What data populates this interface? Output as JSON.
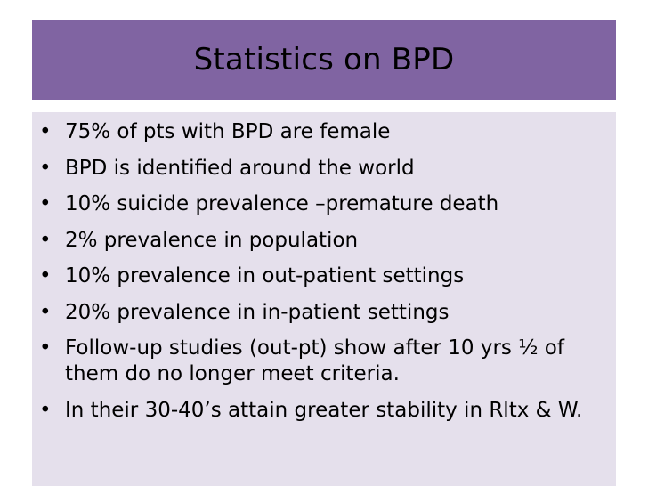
{
  "slide": {
    "title": "Statistics on BPD",
    "bullet_symbol": "•",
    "bullets": [
      "75% of pts with BPD are female",
      "BPD is identified around the world",
      "10% suicide prevalence –premature death",
      "2% prevalence in population",
      "10% prevalence in out-patient settings",
      "20% prevalence in in-patient settings",
      "Follow-up studies (out-pt) show after 10 yrs ½ of them do no longer meet criteria.",
      "In their 30-40’s attain greater stability in Rltx & W."
    ]
  },
  "colors": {
    "title_background": "#8064a2",
    "content_background": "#e5e0ec",
    "text": "#000000"
  }
}
